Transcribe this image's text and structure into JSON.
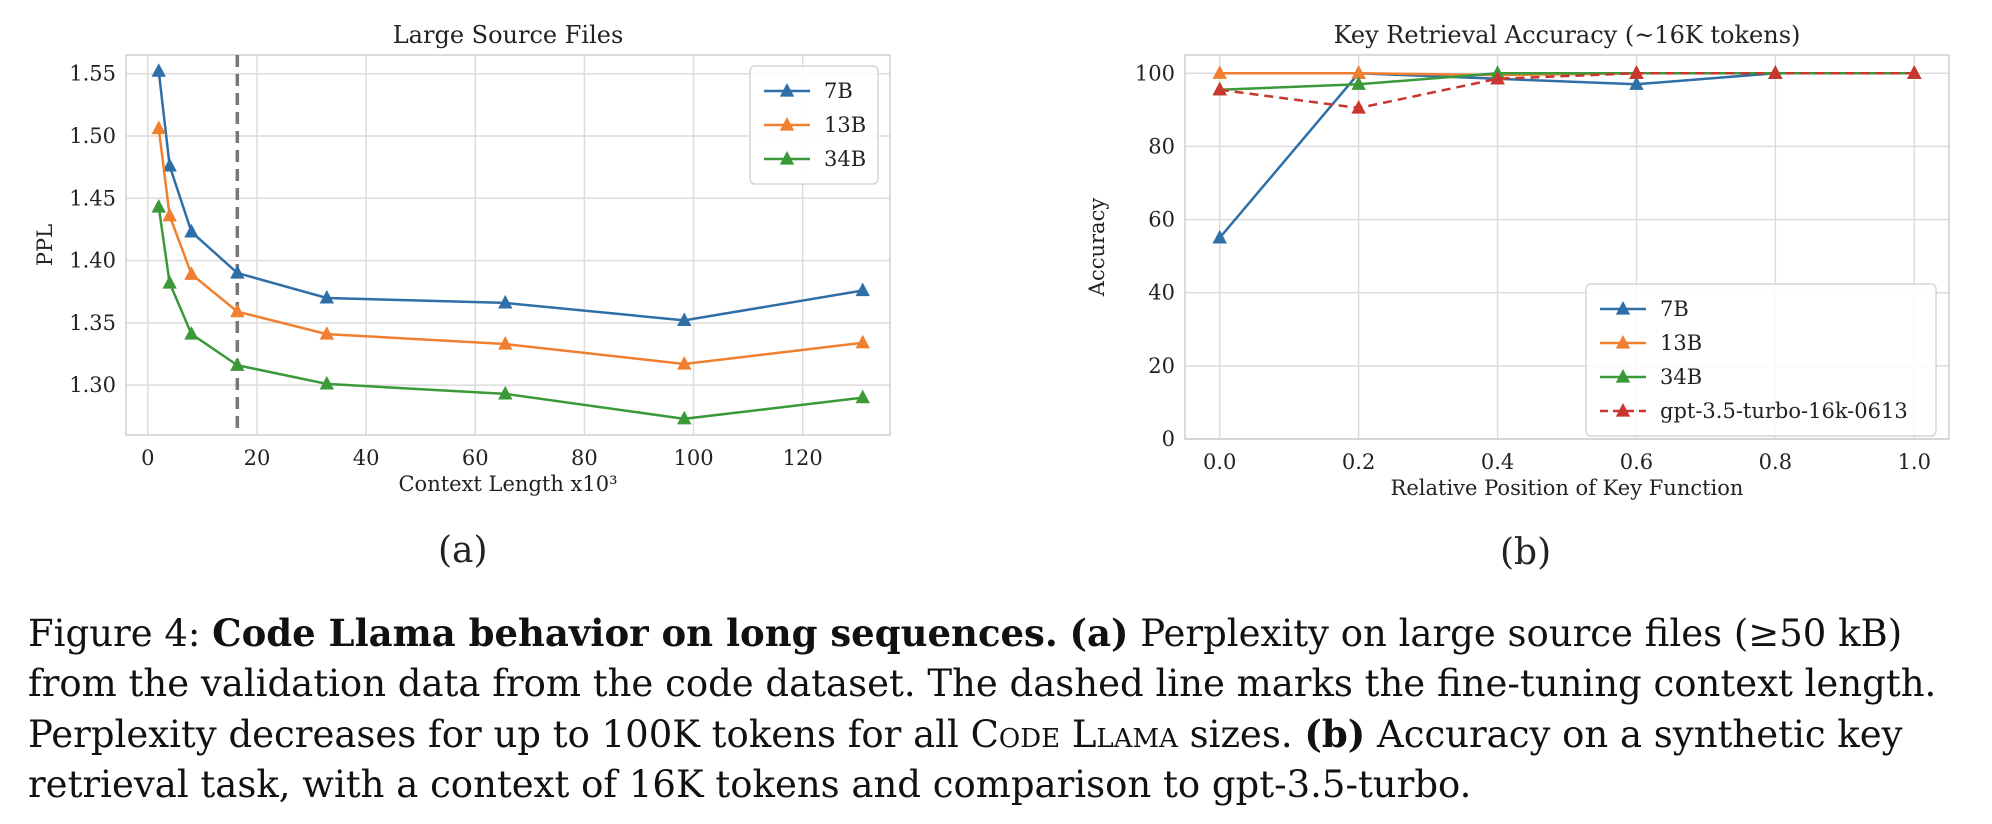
{
  "chart_data": [
    {
      "type": "line",
      "title": "Large Source Files",
      "xlabel": "Context Length x10³",
      "ylabel": "PPL",
      "xlim": [
        -4,
        136
      ],
      "ylim": [
        1.26,
        1.565
      ],
      "xticks": [
        0,
        20,
        40,
        60,
        80,
        100,
        120
      ],
      "yticks": [
        1.3,
        1.35,
        1.4,
        1.45,
        1.5,
        1.55
      ],
      "grid": true,
      "legend_position": "top-right",
      "vline": 16.4,
      "x": [
        2,
        4,
        8,
        16.4,
        32.8,
        65.5,
        98.3,
        131
      ],
      "series": [
        {
          "name": "7B",
          "color": "#2f6fa7",
          "values": [
            1.552,
            1.476,
            1.423,
            1.39,
            1.37,
            1.366,
            1.352,
            1.376
          ]
        },
        {
          "name": "13B",
          "color": "#f08030",
          "values": [
            1.506,
            1.436,
            1.389,
            1.359,
            1.341,
            1.333,
            1.317,
            1.334
          ]
        },
        {
          "name": "34B",
          "color": "#3a9a3a",
          "values": [
            1.443,
            1.382,
            1.341,
            1.316,
            1.301,
            1.293,
            1.273,
            1.29
          ]
        }
      ]
    },
    {
      "type": "line",
      "title": "Key Retrieval Accuracy (~16K tokens)",
      "xlabel": "Relative Position of Key Function",
      "ylabel": "Accuracy",
      "xlim": [
        -0.05,
        1.05
      ],
      "ylim": [
        0,
        105
      ],
      "xticks": [
        0.0,
        0.2,
        0.4,
        0.6,
        0.8,
        1.0
      ],
      "yticks": [
        0,
        20,
        40,
        60,
        80,
        100
      ],
      "grid": true,
      "legend_position": "bottom-right",
      "x": [
        0.0,
        0.2,
        0.4,
        0.6,
        0.8,
        1.0
      ],
      "series": [
        {
          "name": "7B",
          "color": "#2f6fa7",
          "dashed": false,
          "values": [
            55,
            100,
            98.5,
            97,
            100,
            100
          ]
        },
        {
          "name": "13B",
          "color": "#f08030",
          "dashed": false,
          "values": [
            100,
            100,
            99.5,
            100,
            100,
            100
          ]
        },
        {
          "name": "34B",
          "color": "#3a9a3a",
          "dashed": false,
          "values": [
            95.5,
            97,
            100,
            100,
            100,
            100
          ]
        },
        {
          "name": "gpt-3.5-turbo-16k-0613",
          "color": "#c8362f",
          "dashed": true,
          "values": [
            95.5,
            90.5,
            98.5,
            100,
            100,
            100
          ]
        }
      ]
    }
  ],
  "panel_labels": {
    "a": "(a)",
    "b": "(b)"
  },
  "caption": {
    "prefix": "Figure 4: ",
    "bold_title": "Code Llama behavior on long sequences.",
    "a_label": "(a)",
    "a_text": " Perplexity on large source files (≥50 kB) from the validation data from the code dataset. The dashed line marks the fine-tuning context length. Perplexity decreases for up to 100K tokens for all ",
    "model_name": "Code Llama",
    "a_text_end": " sizes. ",
    "b_label": "(b)",
    "b_text": " Accuracy on a synthetic key retrieval task, with a context of 16K tokens and comparison to gpt-3.5-turbo."
  }
}
